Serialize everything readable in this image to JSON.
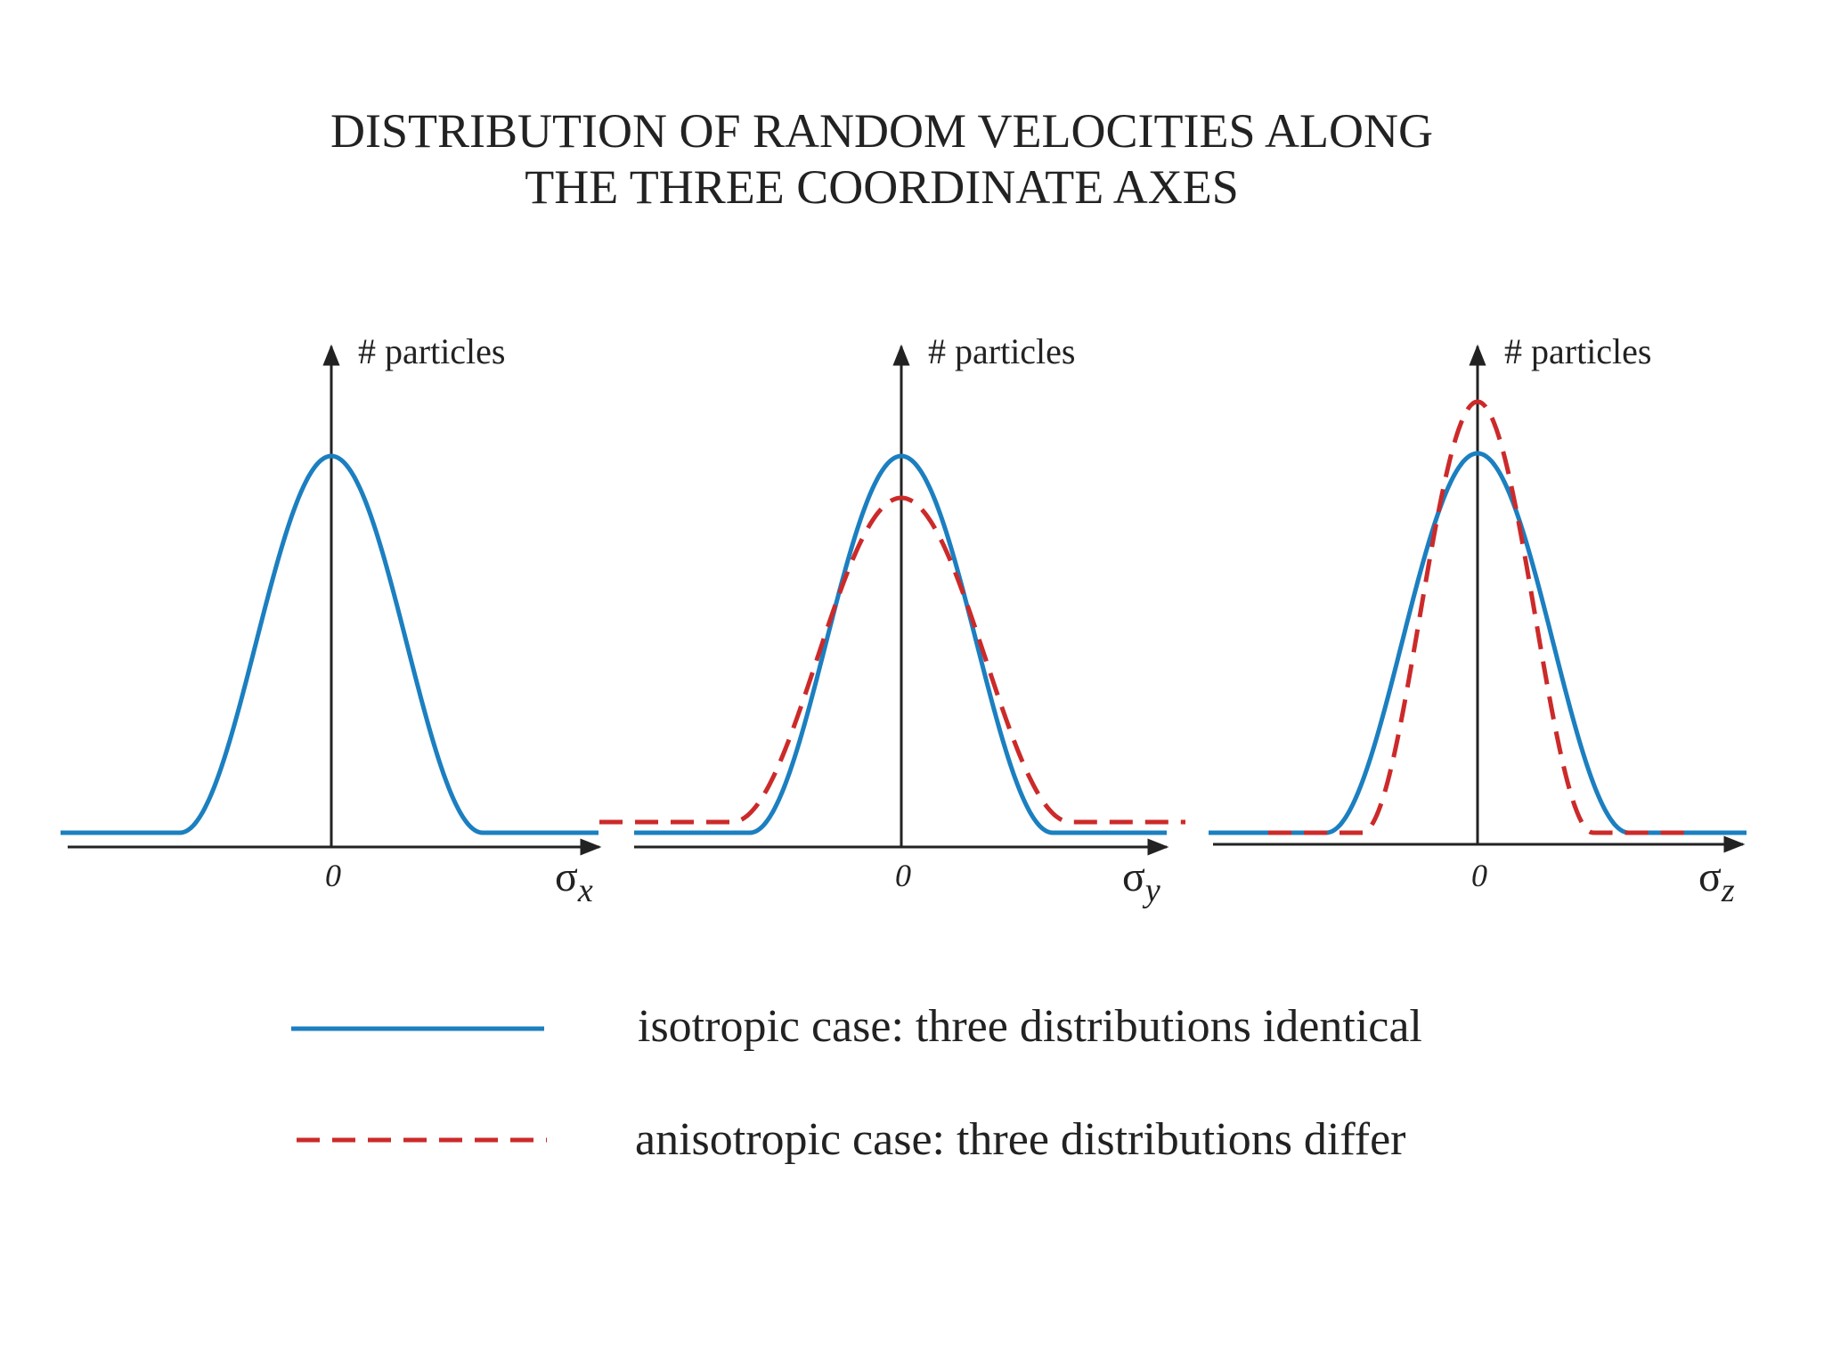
{
  "title": {
    "line1": "DISTRIBUTION OF RANDOM VELOCITIES ALONG",
    "line2": "THE THREE COORDINATE AXES"
  },
  "panels": [
    {
      "y_label": "# particles",
      "origin": "0",
      "x_symbol": "σ",
      "x_subscript": "x"
    },
    {
      "y_label": "# particles",
      "origin": "0",
      "x_symbol": "σ",
      "x_subscript": "y"
    },
    {
      "y_label": "# particles",
      "origin": "0",
      "x_symbol": "σ",
      "x_subscript": "z"
    }
  ],
  "legend": [
    {
      "label": "isotropic case: three distributions identical"
    },
    {
      "label": "anisotropic case: three distributions differ"
    }
  ]
}
